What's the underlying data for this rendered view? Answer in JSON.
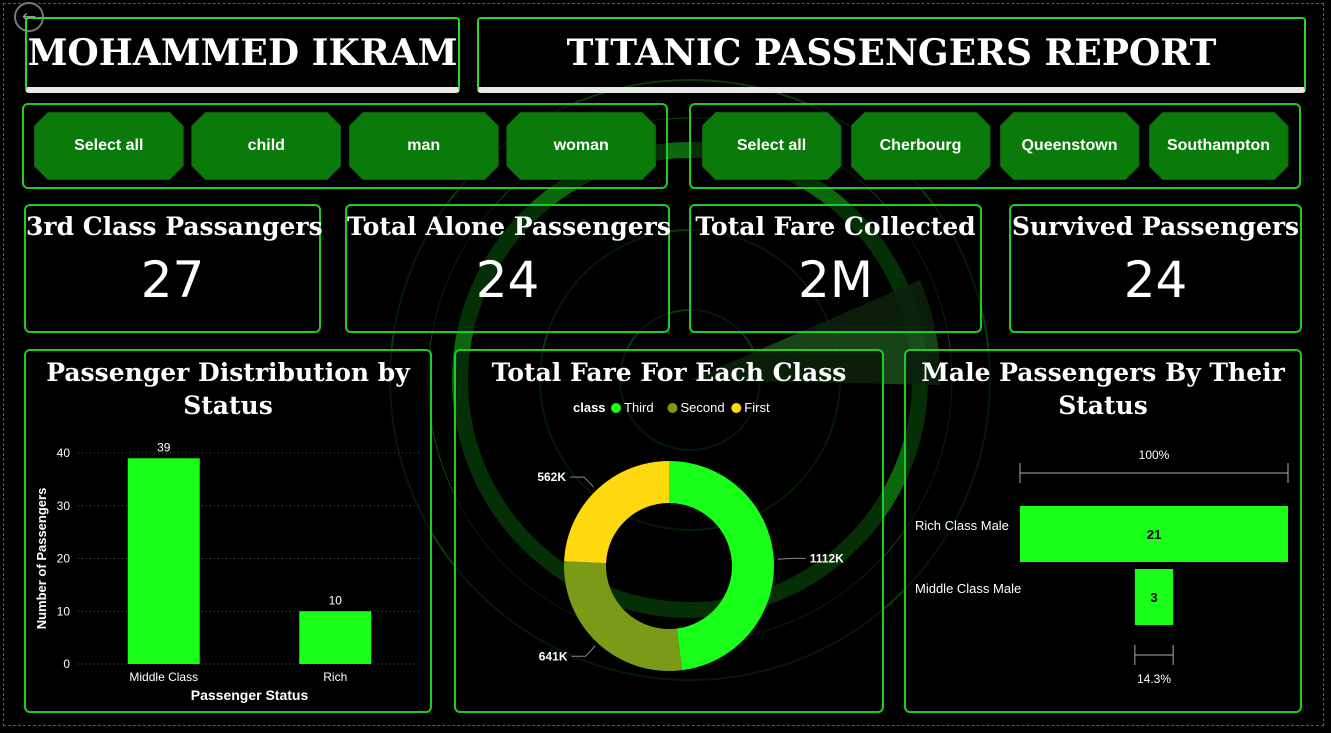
{
  "header": {
    "author": "MOHAMMED IKRAM",
    "report_title": "TITANIC PASSENGERS REPORT"
  },
  "slicers": {
    "who": [
      "Select all",
      "child",
      "man",
      "woman"
    ],
    "embark_town": [
      "Select all",
      "Cherbourg",
      "Queenstown",
      "Southampton"
    ]
  },
  "kpis": [
    {
      "label": "3rd Class Passangers",
      "value": "27"
    },
    {
      "label": "Total Alone Passengers",
      "value": "24"
    },
    {
      "label": "Total Fare Collected",
      "value": "2M"
    },
    {
      "label": "Survived Passengers",
      "value": "24"
    }
  ],
  "colors": {
    "accent_green": "#1aff1a",
    "panel_border": "#1ecc1e",
    "third": "#1aff1a",
    "second": "#7a9a18",
    "first": "#ffd90f",
    "slicer_fill": "#0a7a0a"
  },
  "chart_data": [
    {
      "type": "bar",
      "title": "Passenger Distribution by Status",
      "xlabel": "Passenger Status",
      "ylabel": "Number of Passengers",
      "categories": [
        "Middle Class",
        "Rich"
      ],
      "values": [
        39,
        10
      ],
      "ylim": [
        0,
        40
      ],
      "yticks": [
        0,
        10,
        20,
        30,
        40
      ],
      "grid": true
    },
    {
      "type": "pie",
      "variant": "donut",
      "title": "Total Fare For Each Class",
      "legend_title": "class",
      "legend_position": "top",
      "slices": [
        {
          "name": "Third",
          "value": 1112,
          "label": "1112K"
        },
        {
          "name": "Second",
          "value": 641,
          "label": "641K"
        },
        {
          "name": "First",
          "value": 562,
          "label": "562K"
        }
      ]
    },
    {
      "type": "funnel",
      "title": "Male Passengers By Their Status",
      "categories": [
        "Rich Class Male",
        "Middle Class Male"
      ],
      "values": [
        21,
        3
      ],
      "top_percent_label": "100%",
      "bottom_percent_label": "14.3%"
    }
  ]
}
